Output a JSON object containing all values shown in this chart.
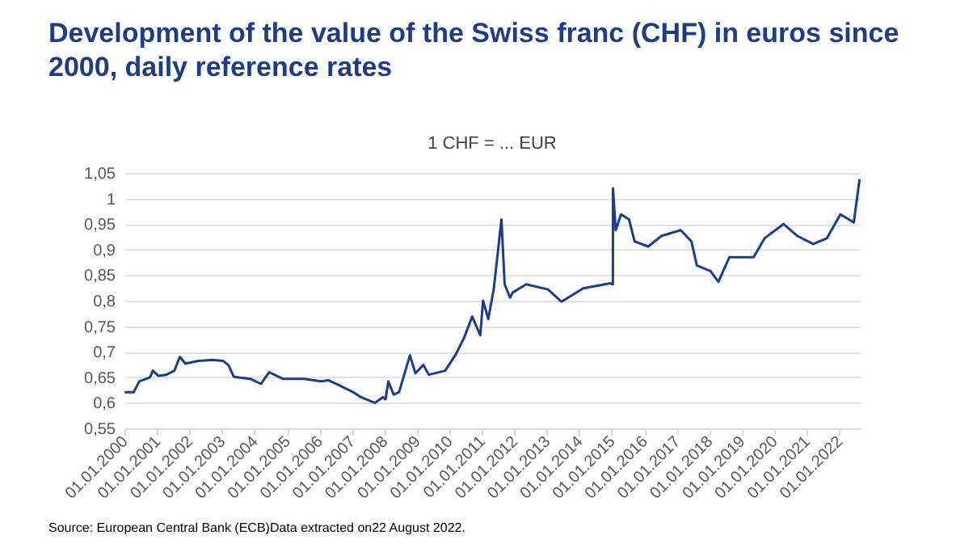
{
  "chart_data": {
    "type": "line",
    "title": "Development of the value of the Swiss franc (CHF) in euros since 2000, daily reference rates",
    "subtitle": "1 CHF = ... EUR",
    "annotations": [
      "Source: European Central Bank (ECB)Data extracted on22 August 2022."
    ],
    "x": [
      "2000-01-03",
      "2000-04-15",
      "2000-06-15",
      "2000-10-15",
      "2000-11-15",
      "2001-01-15",
      "2001-04-15",
      "2001-07-15",
      "2001-09-15",
      "2001-11-15",
      "2002-04-15",
      "2002-09-15",
      "2003-01-15",
      "2003-03-15",
      "2003-05-15",
      "2003-11-15",
      "2004-03-15",
      "2004-06-15",
      "2004-11-15",
      "2005-07-15",
      "2006-01-15",
      "2006-04-15",
      "2006-08-15",
      "2007-01-15",
      "2007-04-15",
      "2007-09-15",
      "2007-12-15",
      "2008-01-15",
      "2008-02-15",
      "2008-04-15",
      "2008-06-15",
      "2008-10-15",
      "2008-12-15",
      "2009-03-15",
      "2009-05-15",
      "2009-11-15",
      "2010-03-15",
      "2010-06-15",
      "2010-09-15",
      "2010-12-15",
      "2011-01-15",
      "2011-03-15",
      "2011-05-15",
      "2011-08-10",
      "2011-09-15",
      "2011-11-15",
      "2011-12-15",
      "2012-05-15",
      "2013-01-15",
      "2013-06-15",
      "2014-02-15",
      "2014-12-15",
      "2015-01-14",
      "2015-01-15",
      "2015-02-15",
      "2015-04-15",
      "2015-07-15",
      "2015-09-15",
      "2016-02-15",
      "2016-07-15",
      "2017-02-15",
      "2017-06-15",
      "2017-08-15",
      "2018-01-15",
      "2018-04-15",
      "2018-08-15",
      "2019-05-15",
      "2019-09-15",
      "2020-04-15",
      "2020-09-15",
      "2021-03-15",
      "2021-08-15",
      "2022-01-15",
      "2022-06-15",
      "2022-08-19"
    ],
    "series": [
      {
        "color": "#1a3d8f",
        "values": [
          0.621,
          0.621,
          0.642,
          0.65,
          0.663,
          0.653,
          0.655,
          0.663,
          0.69,
          0.677,
          0.682,
          0.684,
          0.682,
          0.674,
          0.651,
          0.647,
          0.637,
          0.66,
          0.647,
          0.647,
          0.642,
          0.644,
          0.634,
          0.621,
          0.611,
          0.6,
          0.611,
          0.607,
          0.642,
          0.616,
          0.621,
          0.693,
          0.658,
          0.674,
          0.655,
          0.663,
          0.695,
          0.727,
          0.769,
          0.732,
          0.8,
          0.764,
          0.822,
          0.959,
          0.832,
          0.806,
          0.816,
          0.832,
          0.822,
          0.798,
          0.824,
          0.834,
          0.832,
          1.02,
          0.938,
          0.969,
          0.959,
          0.916,
          0.906,
          0.927,
          0.938,
          0.916,
          0.869,
          0.858,
          0.837,
          0.885,
          0.885,
          0.922,
          0.95,
          0.927,
          0.911,
          0.922,
          0.969,
          0.953,
          1.038
        ]
      }
    ],
    "xlim": [
      "2000-01-01",
      "2022-08-22"
    ],
    "xticks": [
      {
        "value": "2000-01-01",
        "label": "01.01.2000"
      },
      {
        "value": "2001-01-01",
        "label": "01.01.2001"
      },
      {
        "value": "2002-01-01",
        "label": "01.01.2002"
      },
      {
        "value": "2003-01-01",
        "label": "01.01.2003"
      },
      {
        "value": "2004-01-01",
        "label": "01.01.2004"
      },
      {
        "value": "2005-01-01",
        "label": "01.01.2005"
      },
      {
        "value": "2006-01-01",
        "label": "01.01.2006"
      },
      {
        "value": "2007-01-01",
        "label": "01.01.2007"
      },
      {
        "value": "2008-01-01",
        "label": "01.01.2008"
      },
      {
        "value": "2009-01-01",
        "label": "01.01.2009"
      },
      {
        "value": "2010-01-01",
        "label": "01.01.2010"
      },
      {
        "value": "2011-01-01",
        "label": "01.01.2011"
      },
      {
        "value": "2012-01-01",
        "label": "01.01.2012"
      },
      {
        "value": "2013-01-01",
        "label": "01.01.2013"
      },
      {
        "value": "2014-01-01",
        "label": "01.01.2014"
      },
      {
        "value": "2015-01-01",
        "label": "01.01.2015"
      },
      {
        "value": "2016-01-01",
        "label": "01.01.2016"
      },
      {
        "value": "2017-01-01",
        "label": "01.01.2017"
      },
      {
        "value": "2018-01-01",
        "label": "01.01.2018"
      },
      {
        "value": "2019-01-01",
        "label": "01.01.2019"
      },
      {
        "value": "2020-01-01",
        "label": "01.01.2020"
      },
      {
        "value": "2021-01-01",
        "label": "01.01.2021"
      },
      {
        "value": "2022-01-01",
        "label": "01.01.2022"
      }
    ],
    "ylim": [
      0.55,
      1.05
    ],
    "yticks": [
      {
        "value": 0.55,
        "label": "0,55"
      },
      {
        "value": 0.6,
        "label": "0,6"
      },
      {
        "value": 0.65,
        "label": "0,65"
      },
      {
        "value": 0.7,
        "label": "0,7"
      },
      {
        "value": 0.75,
        "label": "0,75"
      },
      {
        "value": 0.8,
        "label": "0,8"
      },
      {
        "value": 0.85,
        "label": "0,85"
      },
      {
        "value": 0.9,
        "label": "0,9"
      },
      {
        "value": 0.95,
        "label": "0,95"
      },
      {
        "value": 1,
        "label": "1"
      },
      {
        "value": 1.05,
        "label": "1,05"
      }
    ],
    "grid": "y",
    "legend": false,
    "marker": "none",
    "line_style": "solid"
  }
}
